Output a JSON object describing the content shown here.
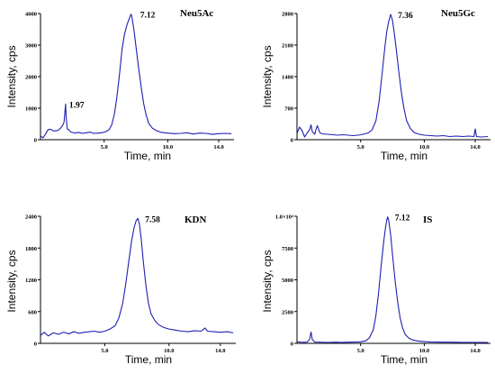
{
  "colors": {
    "trace": "#1f1fb4",
    "axis": "#000000"
  },
  "chart_data": [
    {
      "type": "line",
      "title": "Neu5Ac",
      "xlabel": "Time, min",
      "ylabel": "Intensity, cps",
      "xlim": [
        0,
        15.2
      ],
      "ylim": [
        0,
        4000
      ],
      "xticks": [
        {
          "v": 5.0,
          "label": "5.0"
        },
        {
          "v": 10.0,
          "label": "10.0"
        },
        {
          "v": 14.0,
          "label": "14.0"
        }
      ],
      "yticks": [
        {
          "v": 0,
          "label": "0"
        },
        {
          "v": 1000,
          "label": "1000"
        },
        {
          "v": 2000,
          "label": "2000"
        },
        {
          "v": 3000,
          "label": "3000"
        },
        {
          "v": 4000,
          "label": "4000"
        }
      ],
      "peaks": [
        {
          "label": "7.12",
          "x": 7.12,
          "y": 3980
        },
        {
          "label": "1.97",
          "x": 1.97,
          "y": 1130
        }
      ],
      "series": [
        {
          "x": [
            0,
            0.2,
            0.4,
            0.6,
            0.8,
            1.0,
            1.2,
            1.4,
            1.6,
            1.75,
            1.85,
            1.92,
            1.97,
            2.02,
            2.1,
            2.2,
            2.4,
            2.7,
            3.0,
            3.3,
            3.6,
            3.9,
            4.2,
            4.5,
            4.8,
            5.1,
            5.4,
            5.6,
            5.8,
            6.0,
            6.2,
            6.4,
            6.6,
            6.8,
            6.95,
            7.05,
            7.12,
            7.2,
            7.35,
            7.5,
            7.7,
            7.9,
            8.1,
            8.3,
            8.5,
            8.8,
            9.1,
            9.5,
            10.0,
            10.5,
            11.0,
            11.5,
            12.0,
            12.5,
            13.0,
            13.5,
            14.0,
            14.5,
            15.0
          ],
          "y": [
            120,
            60,
            180,
            320,
            330,
            280,
            280,
            300,
            380,
            460,
            560,
            900,
            1130,
            700,
            340,
            320,
            240,
            210,
            230,
            200,
            220,
            240,
            200,
            210,
            220,
            250,
            320,
            480,
            800,
            1350,
            2050,
            2850,
            3350,
            3650,
            3820,
            3920,
            3980,
            3850,
            3450,
            2950,
            2300,
            1700,
            1150,
            780,
            520,
            360,
            290,
            230,
            210,
            190,
            200,
            220,
            180,
            210,
            200,
            170,
            190,
            200,
            190
          ]
        }
      ]
    },
    {
      "type": "line",
      "title": "Neu5Gc",
      "xlabel": "Time, min",
      "ylabel": "Intensity, cps",
      "xlim": [
        0,
        15.2
      ],
      "ylim": [
        0,
        2800
      ],
      "xticks": [
        {
          "v": 5.0,
          "label": "5.0"
        },
        {
          "v": 10.0,
          "label": "10.0"
        },
        {
          "v": 14.0,
          "label": "14.0"
        }
      ],
      "yticks": [
        {
          "v": 0,
          "label": "0"
        },
        {
          "v": 700,
          "label": "700"
        },
        {
          "v": 1400,
          "label": "1400"
        },
        {
          "v": 2100,
          "label": "2100"
        },
        {
          "v": 2800,
          "label": "2800"
        }
      ],
      "peaks": [
        {
          "label": "7.36",
          "x": 7.36,
          "y": 2780
        }
      ],
      "series": [
        {
          "x": [
            0,
            0.2,
            0.4,
            0.6,
            0.8,
            1.0,
            1.1,
            1.2,
            1.4,
            1.5,
            1.6,
            1.8,
            2.0,
            2.4,
            2.8,
            3.2,
            3.6,
            4.0,
            4.4,
            4.8,
            5.2,
            5.6,
            5.9,
            6.2,
            6.45,
            6.7,
            6.9,
            7.05,
            7.2,
            7.36,
            7.5,
            7.65,
            7.8,
            8.0,
            8.2,
            8.4,
            8.6,
            8.9,
            9.2,
            9.6,
            10.0,
            10.5,
            11.0,
            11.5,
            12.0,
            12.5,
            13.0,
            13.5,
            13.9,
            14.0,
            14.1,
            14.5,
            15.0
          ],
          "y": [
            140,
            280,
            200,
            60,
            150,
            230,
            330,
            180,
            120,
            240,
            310,
            150,
            130,
            120,
            110,
            100,
            110,
            100,
            90,
            100,
            120,
            150,
            220,
            420,
            850,
            1500,
            2050,
            2400,
            2620,
            2780,
            2650,
            2350,
            2000,
            1500,
            1050,
            700,
            430,
            250,
            160,
            120,
            100,
            90,
            80,
            90,
            70,
            80,
            70,
            80,
            70,
            240,
            70,
            60,
            70
          ]
        }
      ]
    },
    {
      "type": "line",
      "title": "KDN",
      "xlabel": "Time, min",
      "ylabel": "Intensity, cps",
      "xlim": [
        0,
        15.2
      ],
      "ylim": [
        0,
        2400
      ],
      "xticks": [
        {
          "v": 5.0,
          "label": "5.0"
        },
        {
          "v": 10.0,
          "label": "10.0"
        },
        {
          "v": 14.0,
          "label": "14.0"
        }
      ],
      "yticks": [
        {
          "v": 0,
          "label": "0"
        },
        {
          "v": 600,
          "label": "600"
        },
        {
          "v": 1200,
          "label": "1200"
        },
        {
          "v": 1800,
          "label": "1800"
        },
        {
          "v": 2400,
          "label": "2400"
        }
      ],
      "peaks": [
        {
          "label": "7.58",
          "x": 7.58,
          "y": 2360
        }
      ],
      "series": [
        {
          "x": [
            0,
            0.3,
            0.6,
            1.0,
            1.4,
            1.8,
            2.2,
            2.6,
            3.0,
            3.4,
            3.8,
            4.2,
            4.6,
            5.0,
            5.4,
            5.8,
            6.1,
            6.4,
            6.65,
            6.9,
            7.1,
            7.3,
            7.45,
            7.58,
            7.7,
            7.85,
            8.0,
            8.2,
            8.4,
            8.6,
            8.9,
            9.2,
            9.6,
            10.0,
            10.5,
            11.0,
            11.5,
            12.0,
            12.5,
            12.8,
            13.0,
            13.5,
            14.0,
            14.5,
            15.0
          ],
          "y": [
            150,
            210,
            140,
            200,
            170,
            210,
            180,
            220,
            190,
            210,
            220,
            230,
            210,
            230,
            270,
            330,
            480,
            760,
            1150,
            1600,
            1950,
            2200,
            2320,
            2360,
            2250,
            1950,
            1550,
            1100,
            760,
            560,
            430,
            350,
            300,
            270,
            250,
            230,
            220,
            240,
            230,
            290,
            230,
            220,
            210,
            220,
            200
          ]
        }
      ]
    },
    {
      "type": "line",
      "title": "IS",
      "xlabel": "Time, min",
      "ylabel": "Intensity, cps",
      "xlim": [
        0,
        15.2
      ],
      "ylim": [
        0,
        10000
      ],
      "xticks": [
        {
          "v": 5.0,
          "label": "5.0"
        },
        {
          "v": 10.0,
          "label": "10.0"
        },
        {
          "v": 14.0,
          "label": "14.0"
        }
      ],
      "yticks": [
        {
          "v": 0,
          "label": "0"
        },
        {
          "v": 2500,
          "label": "2500"
        },
        {
          "v": 5000,
          "label": "5000"
        },
        {
          "v": 7500,
          "label": "7500"
        },
        {
          "v": 10000,
          "label": "1.0×10⁴"
        }
      ],
      "peaks": [
        {
          "label": "7.12",
          "x": 7.12,
          "y": 9950
        }
      ],
      "series": [
        {
          "x": [
            0,
            0.3,
            0.6,
            0.8,
            1.0,
            1.1,
            1.2,
            1.4,
            1.8,
            2.2,
            2.6,
            3.0,
            3.5,
            4.0,
            4.5,
            5.0,
            5.4,
            5.7,
            6.0,
            6.2,
            6.4,
            6.6,
            6.8,
            6.95,
            7.05,
            7.12,
            7.2,
            7.35,
            7.5,
            7.7,
            7.9,
            8.1,
            8.3,
            8.5,
            8.8,
            9.1,
            9.5,
            10.0,
            10.5,
            11.0,
            12.0,
            13.0,
            14.0,
            15.0
          ],
          "y": [
            120,
            90,
            80,
            100,
            350,
            900,
            300,
            100,
            90,
            80,
            80,
            90,
            80,
            90,
            100,
            120,
            200,
            450,
            1100,
            2200,
            3900,
            6000,
            7900,
            9100,
            9700,
            9950,
            9700,
            8600,
            7000,
            5000,
            3300,
            2000,
            1200,
            700,
            400,
            260,
            180,
            140,
            110,
            100,
            90,
            80,
            80,
            70
          ]
        }
      ]
    }
  ]
}
